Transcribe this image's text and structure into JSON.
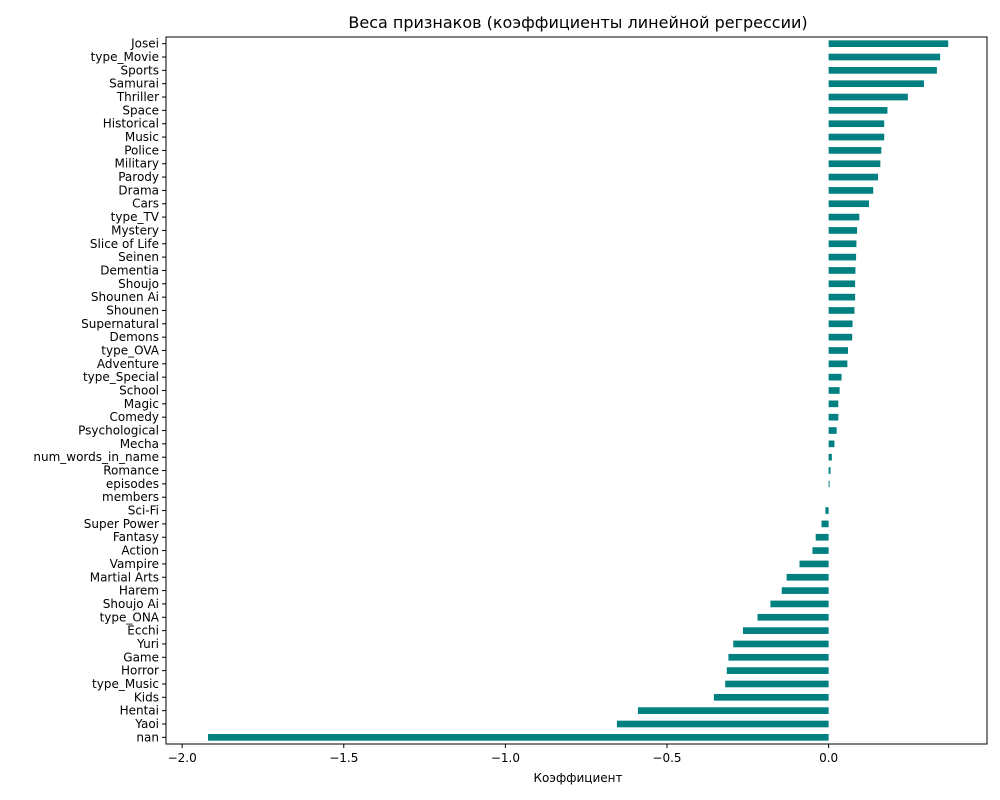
{
  "chart_data": {
    "type": "bar",
    "orientation": "horizontal",
    "title": "Веса признаков (коэффициенты линейной регрессии)",
    "xlabel": "Коэффициент",
    "ylabel": "",
    "xlim": [
      -2.05,
      0.49
    ],
    "xticks": [
      -2.0,
      -1.5,
      -1.0,
      -0.5,
      0.0
    ],
    "xtick_labels": [
      "−2.0",
      "−1.5",
      "−1.0",
      "−0.5",
      "0.0"
    ],
    "bar_color": "#008080",
    "grid": false,
    "categories": [
      "Josei",
      "type_Movie",
      "Sports",
      "Samurai",
      "Thriller",
      "Space",
      "Historical",
      "Music",
      "Police",
      "Military",
      "Parody",
      "Drama",
      "Cars",
      "type_TV",
      "Mystery",
      "Slice of Life",
      "Seinen",
      "Dementia",
      "Shoujo",
      "Shounen Ai",
      "Shounen",
      "Supernatural",
      "Demons",
      "type_OVA",
      "Adventure",
      "type_Special",
      "School",
      "Magic",
      "Comedy",
      "Psychological",
      "Mecha",
      "num_words_in_name",
      "Romance",
      "episodes",
      "members",
      "Sci-Fi",
      "Super Power",
      "Fantasy",
      "Action",
      "Vampire",
      "Martial Arts",
      "Harem",
      "Shoujo Ai",
      "type_ONA",
      "Ecchi",
      "Yuri",
      "Game",
      "Horror",
      "type_Music",
      "Kids",
      "Hentai",
      "Yaoi",
      "nan"
    ],
    "values": [
      0.37,
      0.345,
      0.335,
      0.295,
      0.245,
      0.182,
      0.172,
      0.172,
      0.163,
      0.16,
      0.153,
      0.138,
      0.125,
      0.095,
      0.088,
      0.086,
      0.085,
      0.083,
      0.082,
      0.082,
      0.08,
      0.074,
      0.073,
      0.06,
      0.058,
      0.04,
      0.034,
      0.03,
      0.03,
      0.025,
      0.018,
      0.01,
      0.006,
      0.003,
      0.0,
      -0.01,
      -0.022,
      -0.04,
      -0.05,
      -0.09,
      -0.13,
      -0.145,
      -0.18,
      -0.22,
      -0.265,
      -0.295,
      -0.31,
      -0.315,
      -0.32,
      -0.355,
      -0.59,
      -0.655,
      -1.92
    ]
  }
}
